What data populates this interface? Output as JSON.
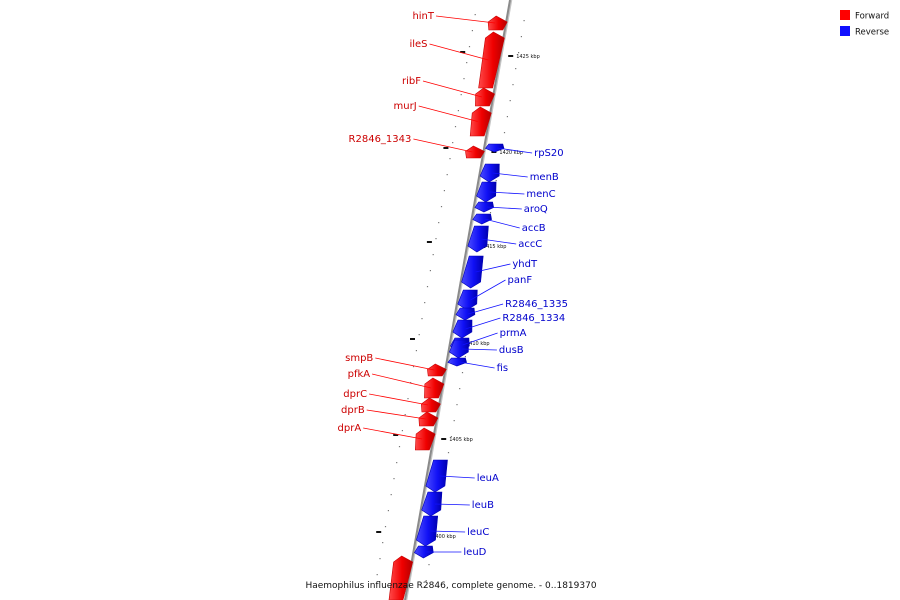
{
  "colors": {
    "forward": "#ff0000",
    "forward_dark": "#c80000",
    "reverse": "#1010ff",
    "reverse_dark": "#0000b4",
    "axis": "#8a8a8a",
    "tick": "#111111"
  },
  "legend": {
    "forward": "Forward",
    "reverse": "Reverse"
  },
  "footer": {
    "caption": "Haemophilus influenzae R2846, complete genome. - 0..1819370"
  },
  "ticks": [
    {
      "kbp": 1425,
      "label": "1425 kbp"
    },
    {
      "kbp": 1420,
      "label": "1420 kbp"
    },
    {
      "kbp": 1415,
      "label": "1415 kbp"
    },
    {
      "kbp": 1410,
      "label": "1410 kbp"
    },
    {
      "kbp": 1405,
      "label": "1405 kbp"
    },
    {
      "kbp": 1400,
      "label": "1400 kbp"
    }
  ],
  "genes": [
    {
      "name": "hinT",
      "strand": "forward"
    },
    {
      "name": "ileS",
      "strand": "forward"
    },
    {
      "name": "ribF",
      "strand": "forward"
    },
    {
      "name": "murJ",
      "strand": "forward"
    },
    {
      "name": "R2846_1343",
      "strand": "forward"
    },
    {
      "name": "rpS20",
      "strand": "reverse"
    },
    {
      "name": "menB",
      "strand": "reverse"
    },
    {
      "name": "menC",
      "strand": "reverse"
    },
    {
      "name": "aroQ",
      "strand": "reverse"
    },
    {
      "name": "accB",
      "strand": "reverse"
    },
    {
      "name": "accC",
      "strand": "reverse"
    },
    {
      "name": "yhdT",
      "strand": "reverse"
    },
    {
      "name": "panF",
      "strand": "reverse"
    },
    {
      "name": "R2846_1335",
      "strand": "reverse"
    },
    {
      "name": "R2846_1334",
      "strand": "reverse"
    },
    {
      "name": "prmA",
      "strand": "reverse"
    },
    {
      "name": "dusB",
      "strand": "reverse"
    },
    {
      "name": "fis",
      "strand": "reverse"
    },
    {
      "name": "smpB",
      "strand": "forward"
    },
    {
      "name": "pfkA",
      "strand": "forward"
    },
    {
      "name": "dprC",
      "strand": "forward"
    },
    {
      "name": "dprB",
      "strand": "forward"
    },
    {
      "name": "dprA",
      "strand": "forward"
    },
    {
      "name": "leuA",
      "strand": "reverse"
    },
    {
      "name": "leuB",
      "strand": "reverse"
    },
    {
      "name": "leuC",
      "strand": "reverse"
    },
    {
      "name": "leuD",
      "strand": "reverse"
    },
    {
      "name": "",
      "strand": "forward"
    }
  ]
}
